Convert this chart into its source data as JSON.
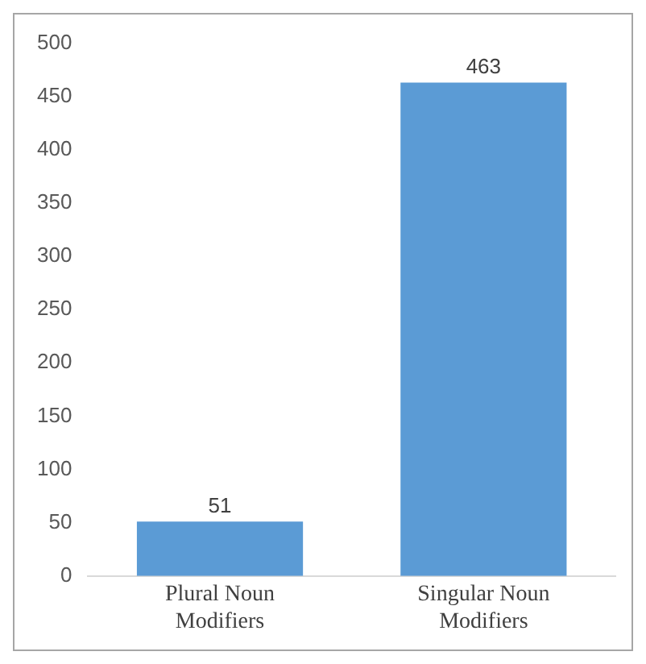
{
  "chart_data": {
    "type": "bar",
    "categories": [
      "Plural Noun Modifiers",
      "Singular Noun Modifiers"
    ],
    "values": [
      51,
      463
    ],
    "color": "#5b9bd5",
    "ylim": [
      0,
      500
    ],
    "yticks": [
      0,
      50,
      100,
      150,
      200,
      250,
      300,
      350,
      400,
      450,
      500
    ],
    "grid": false,
    "data_labels": true,
    "legend": false
  }
}
